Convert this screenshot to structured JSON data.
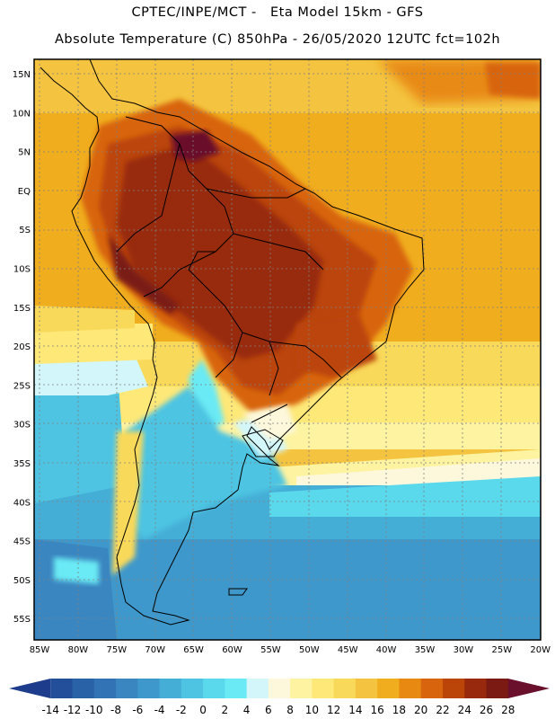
{
  "titles": {
    "line1": "CPTEC/INPE/MCT -   Eta Model 15km - GFS",
    "line2": "Absolute Temperature (C) 850hPa - 26/05/2020 12UTC fct=102h"
  },
  "axes": {
    "lat_labels": [
      "15N",
      "10N",
      "5N",
      "EQ",
      "5S",
      "10S",
      "15S",
      "20S",
      "25S",
      "30S",
      "35S",
      "40S",
      "45S",
      "50S",
      "55S"
    ],
    "lon_labels": [
      "85W",
      "80W",
      "75W",
      "70W",
      "65W",
      "60W",
      "55W",
      "50W",
      "45W",
      "40W",
      "35W",
      "30W",
      "25W",
      "20W"
    ]
  },
  "colorbar": {
    "values": [
      "-14",
      "-12",
      "-10",
      "-8",
      "-6",
      "-4",
      "-2",
      "0",
      "2",
      "4",
      "6",
      "8",
      "10",
      "12",
      "14",
      "16",
      "18",
      "20",
      "22",
      "24",
      "26",
      "28"
    ],
    "colors": [
      "#1e3c8c",
      "#234f9a",
      "#2a62a8",
      "#3173b4",
      "#3a86c0",
      "#3f98cb",
      "#45aed6",
      "#4ec4e2",
      "#5ad8ec",
      "#6aeaf4",
      "#d2f6fa",
      "#fdf7dc",
      "#fdf3a0",
      "#fde878",
      "#f9d95a",
      "#f4c440",
      "#f0ad1e",
      "#e88a12",
      "#d8650e",
      "#bb4408",
      "#98290c",
      "#7a1a12",
      "#6a0f2c"
    ]
  },
  "legend": {
    "unit": "C"
  }
}
